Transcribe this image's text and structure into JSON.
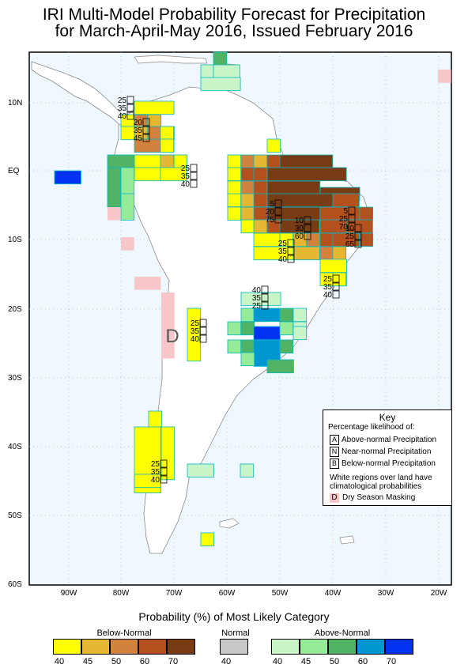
{
  "title": {
    "line1": "IRI Multi-Model Probability Forecast for Precipitation",
    "line2": "for March-April-May 2016, Issued February 2016"
  },
  "map": {
    "lat_labels": [
      "10N",
      "EQ",
      "10S",
      "20S",
      "30S",
      "40S",
      "50S",
      "60S"
    ],
    "lon_labels": [
      "90W",
      "80W",
      "70W",
      "60W",
      "50W",
      "40W",
      "30W",
      "20W"
    ],
    "region_marker": "D",
    "annotations": [
      {
        "id": "nw-colombia",
        "values": [
          "25",
          "35",
          "40"
        ]
      },
      {
        "id": "colombia-venez",
        "values": [
          "20",
          "35",
          "45"
        ]
      },
      {
        "id": "ecuador-peru",
        "values": [
          "25",
          "35",
          "40"
        ]
      },
      {
        "id": "amazon-n",
        "values": [
          "5",
          "20",
          "75"
        ]
      },
      {
        "id": "ne-brazil",
        "values": [
          "5",
          "25",
          "70"
        ]
      },
      {
        "id": "ne-brazil-coast",
        "values": [
          "10",
          "25",
          "65"
        ]
      },
      {
        "id": "central-brazil",
        "values": [
          "10",
          "30",
          "60"
        ]
      },
      {
        "id": "brazil-s",
        "values": [
          "25",
          "35",
          "40"
        ]
      },
      {
        "id": "bahia",
        "values": [
          "25",
          "35",
          "40"
        ]
      },
      {
        "id": "paraguay",
        "values": [
          "40",
          "35",
          "25"
        ]
      },
      {
        "id": "andes-arg",
        "values": [
          "25",
          "35",
          "40"
        ]
      },
      {
        "id": "patagonia",
        "values": [
          "25",
          "35",
          "40"
        ]
      }
    ],
    "colors": {
      "ocean": "#f0f8ff",
      "land": "#ffffff",
      "dry_mask": "#f7c6c8",
      "grid_border": "#00b7c8"
    }
  },
  "key": {
    "title": "Key",
    "subtitle": "Percentage likelihood of:",
    "rows": [
      {
        "letter": "A",
        "label": "Above-normal Precipitation"
      },
      {
        "letter": "N",
        "label": "Near-normal Precipitation"
      },
      {
        "letter": "B",
        "label": "Below-normal Precipitation"
      }
    ],
    "note_line1": "White regions over land have",
    "note_line2": "climatological probabilities",
    "dry_letter": "D",
    "dry_label": "Dry Season Masking"
  },
  "legend": {
    "title": "Probability (%) of Most Likely Category",
    "below": {
      "label": "Below-Normal",
      "ticks": [
        "40",
        "45",
        "50",
        "60",
        "70"
      ],
      "colors": [
        "#ffff00",
        "#e6b832",
        "#d2823c",
        "#b4501e",
        "#783c14"
      ]
    },
    "normal": {
      "label": "Normal",
      "ticks": [
        "40"
      ],
      "colors": [
        "#c8c8c8"
      ]
    },
    "above": {
      "label": "Above-Normal",
      "ticks": [
        "40",
        "45",
        "50",
        "60",
        "70"
      ],
      "colors": [
        "#c8f5c8",
        "#96eb96",
        "#50b464",
        "#0096d2",
        "#0032f0"
      ]
    }
  }
}
